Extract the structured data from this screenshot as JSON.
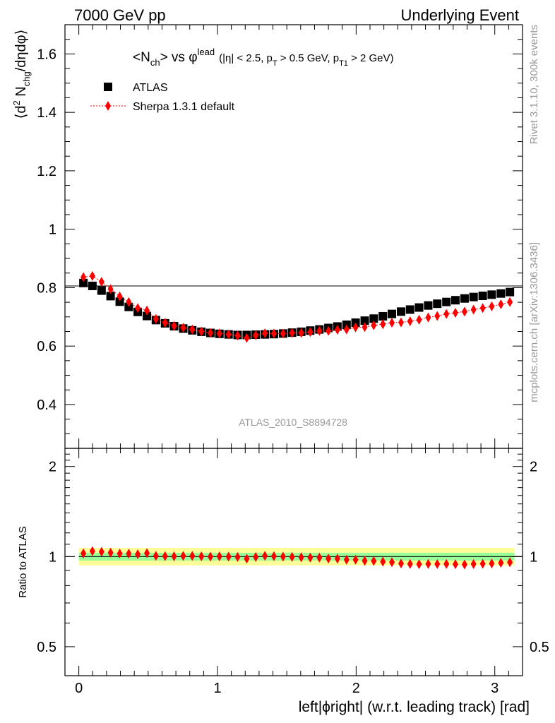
{
  "header": {
    "left": "7000 GeV pp",
    "right": "Underlying Event"
  },
  "side": {
    "rivet": "Rivet 3.1.10,  300k events",
    "mcplots": "mcplots.cern.ch [arXiv:1306.3436]"
  },
  "chart_data": [
    {
      "type": "scatter",
      "title_main": "<N",
      "title_main_sub": "ch",
      "title_vs": "> vs φ",
      "title_sup": "lead",
      "title_cuts": "(|η| < 2.5, p",
      "title_cuts_sub1": "T",
      "title_cuts_mid": " > 0.5 GeV, p",
      "title_cuts_sub2": "T1",
      "title_cuts_end": " > 2 GeV)",
      "ylabel_pre": "⟨d",
      "ylabel_sup": "2",
      "ylabel_mid": " N",
      "ylabel_sub": "chg",
      "ylabel_post": "/dηdφ⟩",
      "watermark": "ATLAS_2010_S8894728",
      "xlim": [
        -0.1,
        3.2
      ],
      "ylim": [
        0.25,
        1.7
      ],
      "yticks": [
        "0.4",
        "0.6",
        "0.8",
        "1",
        "1.2",
        "1.4",
        "1.6"
      ],
      "legend_position": "top-left",
      "x": [
        0.033,
        0.098,
        0.164,
        0.229,
        0.295,
        0.36,
        0.425,
        0.491,
        0.556,
        0.622,
        0.687,
        0.753,
        0.818,
        0.884,
        0.949,
        1.014,
        1.08,
        1.145,
        1.211,
        1.276,
        1.342,
        1.407,
        1.473,
        1.538,
        1.604,
        1.669,
        1.735,
        1.8,
        1.865,
        1.931,
        1.996,
        2.062,
        2.127,
        2.193,
        2.258,
        2.324,
        2.389,
        2.454,
        2.52,
        2.585,
        2.651,
        2.716,
        2.782,
        2.847,
        2.913,
        2.978,
        3.044,
        3.109
      ],
      "series": [
        {
          "name": "ATLAS",
          "color": "#000000",
          "marker": "square",
          "values": [
            0.816,
            0.806,
            0.79,
            0.771,
            0.752,
            0.734,
            0.717,
            0.703,
            0.689,
            0.678,
            0.668,
            0.66,
            0.654,
            0.649,
            0.645,
            0.642,
            0.64,
            0.638,
            0.638,
            0.639,
            0.64,
            0.641,
            0.643,
            0.646,
            0.649,
            0.653,
            0.657,
            0.662,
            0.667,
            0.673,
            0.68,
            0.687,
            0.694,
            0.702,
            0.71,
            0.718,
            0.725,
            0.732,
            0.739,
            0.745,
            0.751,
            0.757,
            0.763,
            0.768,
            0.772,
            0.776,
            0.78,
            0.785
          ]
        },
        {
          "name": "Sherpa 1.3.1 default",
          "color": "#ff0000",
          "marker": "diamond",
          "values": [
            0.836,
            0.84,
            0.82,
            0.795,
            0.77,
            0.751,
            0.73,
            0.722,
            0.693,
            0.68,
            0.669,
            0.663,
            0.657,
            0.65,
            0.645,
            0.643,
            0.64,
            0.636,
            0.628,
            0.637,
            0.644,
            0.643,
            0.643,
            0.645,
            0.645,
            0.648,
            0.652,
            0.652,
            0.656,
            0.657,
            0.664,
            0.665,
            0.671,
            0.675,
            0.68,
            0.681,
            0.685,
            0.69,
            0.698,
            0.703,
            0.71,
            0.714,
            0.718,
            0.725,
            0.73,
            0.736,
            0.743,
            0.751
          ]
        }
      ]
    },
    {
      "type": "scatter",
      "ylabel": "Ratio to ATLAS",
      "xlabel": "left|ϕright| (w.r.t. leading track) [rad]",
      "xlim": [
        -0.1,
        3.2
      ],
      "xticks": [
        "0",
        "1",
        "2",
        "3"
      ],
      "ylim_log": [
        0.4,
        2.3
      ],
      "yticks": [
        "0.5",
        "1",
        "2"
      ],
      "band_inner": [
        0.97,
        1.03
      ],
      "band_outer": [
        0.935,
        1.07
      ],
      "series": [
        {
          "name": "Sherpa 1.3.1 default",
          "color": "#ff0000",
          "marker": "diamond",
          "values": [
            1.025,
            1.043,
            1.038,
            1.031,
            1.024,
            1.023,
            1.018,
            1.027,
            1.006,
            1.003,
            1.002,
            1.005,
            1.005,
            1.002,
            1.0,
            1.002,
            1.0,
            0.997,
            0.984,
            0.997,
            1.006,
            1.003,
            1.0,
            0.998,
            0.994,
            0.992,
            0.992,
            0.985,
            0.984,
            0.976,
            0.976,
            0.968,
            0.967,
            0.962,
            0.958,
            0.948,
            0.945,
            0.943,
            0.945,
            0.944,
            0.945,
            0.943,
            0.941,
            0.944,
            0.946,
            0.948,
            0.953,
            0.957
          ]
        }
      ]
    }
  ]
}
